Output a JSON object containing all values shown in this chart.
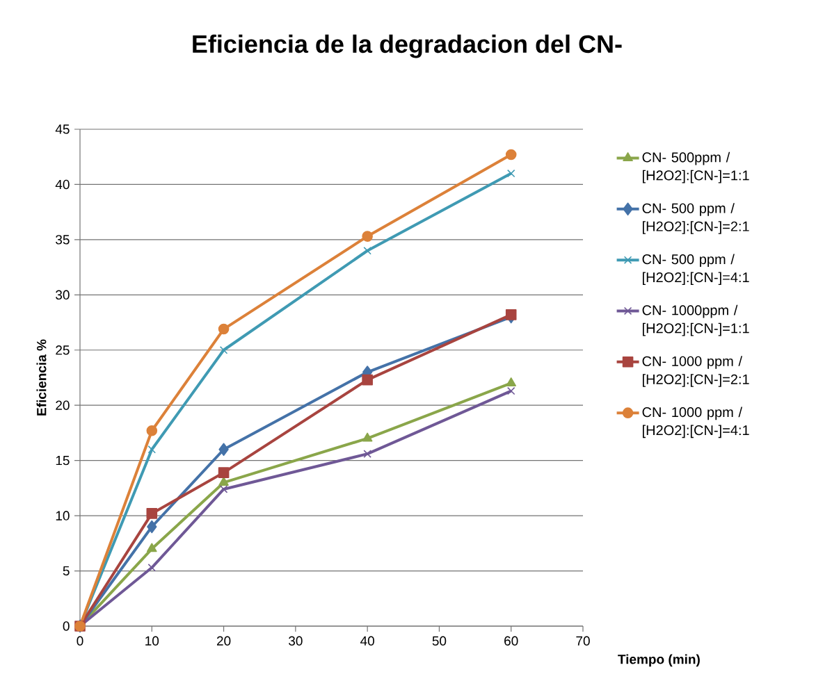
{
  "chart_data": {
    "type": "line",
    "title": "Eficiencia de la degradacion del CN-",
    "xlabel": "Tiempo (min)",
    "ylabel": "Eficiencia %",
    "x": [
      0,
      10,
      20,
      40,
      60
    ],
    "series": [
      {
        "name": "CN- 500ppm / [H2O2]:[CN-]=1:1",
        "color": "#8aa64a",
        "marker": "triangle",
        "values": [
          0,
          7,
          13,
          17,
          22
        ]
      },
      {
        "name": "CN- 500 ppm / [H2O2]:[CN-]=2:1",
        "color": "#4472a8",
        "marker": "diamond",
        "values": [
          0,
          9,
          16,
          23,
          28
        ]
      },
      {
        "name": "CN- 500 ppm / [H2O2]:[CN-]=4:1",
        "color": "#3f9ab3",
        "marker": "cross",
        "values": [
          0,
          16,
          25,
          34,
          41
        ]
      },
      {
        "name": "CN- 1000ppm / [H2O2]:[CN-]=1:1",
        "color": "#6f5896",
        "marker": "cross",
        "values": [
          0,
          5.3,
          12.4,
          15.6,
          21.3
        ]
      },
      {
        "name": "CN- 1000 ppm / [H2O2]:[CN-]=2:1",
        "color": "#a8443f",
        "marker": "square",
        "values": [
          0,
          10.2,
          13.9,
          22.3,
          28.2
        ]
      },
      {
        "name": "CN- 1000 ppm / [H2O2]:[CN-]=4:1",
        "color": "#dc8139",
        "marker": "circle",
        "values": [
          0,
          17.7,
          26.9,
          35.3,
          42.7
        ]
      }
    ],
    "xlim": [
      0,
      70
    ],
    "xticks": [
      0,
      10,
      20,
      30,
      40,
      50,
      60,
      70
    ],
    "ylim": [
      0,
      45
    ],
    "yticks": [
      0,
      5,
      10,
      15,
      20,
      25,
      30,
      35,
      40,
      45
    ],
    "grid": "y",
    "legend": "right",
    "line_style": "solid"
  }
}
